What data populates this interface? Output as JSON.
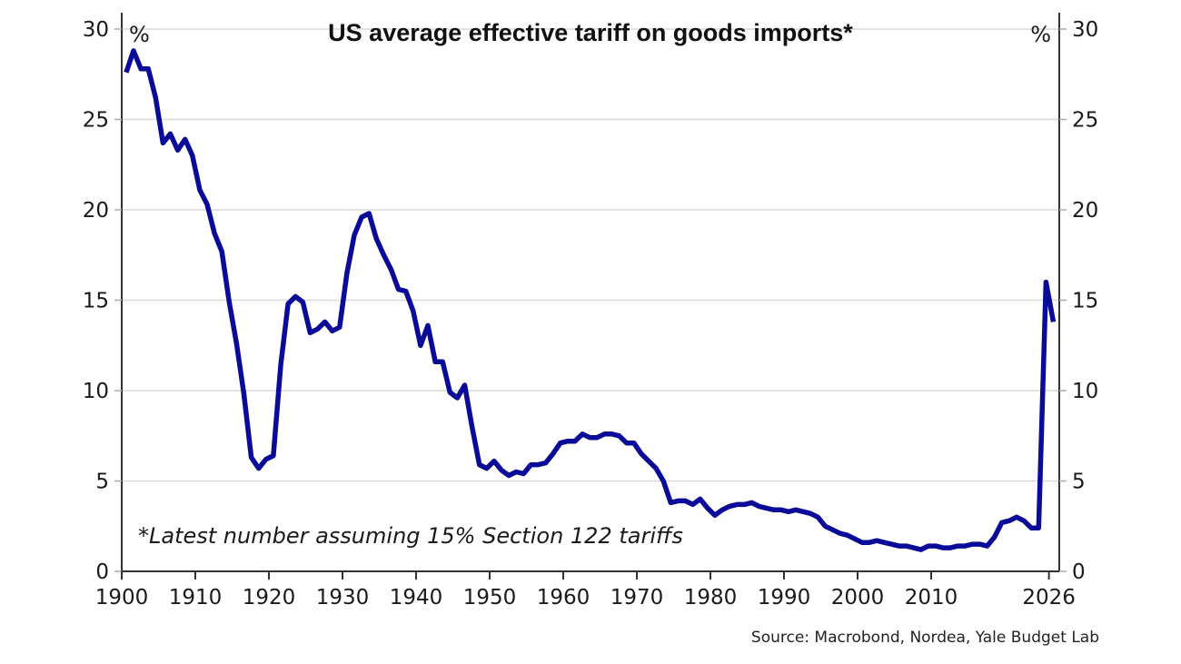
{
  "chart_data": {
    "type": "line",
    "title": "US average effective tariff on goods imports*",
    "left_unit": "%",
    "right_unit": "%",
    "xlabel": "",
    "ylabel": "%",
    "ylim": [
      0,
      30
    ],
    "xlim": [
      1900,
      2027
    ],
    "yticks": [
      0,
      5,
      10,
      15,
      20,
      25,
      30
    ],
    "ytick_labels": [
      "0",
      "5",
      "10",
      "15",
      "20",
      "25",
      "30"
    ],
    "xticks": [
      1900,
      1910,
      1920,
      1930,
      1940,
      1950,
      1960,
      1970,
      1980,
      1990,
      2000,
      2010,
      2026
    ],
    "xtick_labels": [
      "1900",
      "1910",
      "1920",
      "1930",
      "1940",
      "1950",
      "1960",
      "1970",
      "1980",
      "1990",
      "2000",
      "2010",
      "2026"
    ],
    "grid": true,
    "dual_y_axis": true,
    "annotation": "*Latest number assuming 15% Section 122 tariffs",
    "source": "Source: Macrobond, Nordea, Yale Budget Lab",
    "series": [
      {
        "name": "US average effective tariff on goods imports",
        "color": "#0b0b99",
        "x": [
          1900,
          1901,
          1902,
          1903,
          1904,
          1905,
          1906,
          1907,
          1908,
          1909,
          1910,
          1911,
          1912,
          1913,
          1914,
          1915,
          1916,
          1917,
          1918,
          1919,
          1920,
          1921,
          1922,
          1923,
          1924,
          1925,
          1926,
          1927,
          1928,
          1929,
          1930,
          1931,
          1932,
          1933,
          1934,
          1935,
          1936,
          1937,
          1938,
          1939,
          1940,
          1941,
          1942,
          1943,
          1944,
          1945,
          1946,
          1947,
          1948,
          1949,
          1950,
          1951,
          1952,
          1953,
          1954,
          1955,
          1956,
          1957,
          1958,
          1959,
          1960,
          1961,
          1962,
          1963,
          1964,
          1965,
          1966,
          1967,
          1968,
          1969,
          1970,
          1971,
          1972,
          1973,
          1974,
          1975,
          1976,
          1977,
          1978,
          1979,
          1980,
          1981,
          1982,
          1983,
          1984,
          1985,
          1986,
          1987,
          1988,
          1989,
          1990,
          1991,
          1992,
          1993,
          1994,
          1995,
          1996,
          1997,
          1998,
          1999,
          2000,
          2001,
          2002,
          2003,
          2004,
          2005,
          2006,
          2007,
          2008,
          2009,
          2010,
          2011,
          2012,
          2013,
          2014,
          2015,
          2016,
          2017,
          2018,
          2019,
          2020,
          2021,
          2022,
          2023,
          2024,
          2025,
          2026
        ],
        "values": [
          27.6,
          28.8,
          27.8,
          27.8,
          26.2,
          23.7,
          24.2,
          23.3,
          23.9,
          23.0,
          21.1,
          20.3,
          18.7,
          17.7,
          14.9,
          12.6,
          9.8,
          6.3,
          5.7,
          6.2,
          6.4,
          11.4,
          14.8,
          15.2,
          14.9,
          13.2,
          13.4,
          13.8,
          13.3,
          13.5,
          16.5,
          18.6,
          19.6,
          19.8,
          18.4,
          17.5,
          16.7,
          15.6,
          15.5,
          14.4,
          12.5,
          13.6,
          11.6,
          11.6,
          9.9,
          9.6,
          10.3,
          8.0,
          5.9,
          5.7,
          6.1,
          5.6,
          5.3,
          5.5,
          5.4,
          5.9,
          5.9,
          6.0,
          6.5,
          7.1,
          7.2,
          7.2,
          7.6,
          7.4,
          7.4,
          7.6,
          7.6,
          7.5,
          7.1,
          7.1,
          6.5,
          6.1,
          5.7,
          5.0,
          3.8,
          3.9,
          3.9,
          3.7,
          4.0,
          3.5,
          3.1,
          3.4,
          3.6,
          3.7,
          3.7,
          3.8,
          3.6,
          3.5,
          3.4,
          3.4,
          3.3,
          3.4,
          3.3,
          3.2,
          3.0,
          2.5,
          2.3,
          2.1,
          2.0,
          1.8,
          1.6,
          1.6,
          1.7,
          1.6,
          1.5,
          1.4,
          1.4,
          1.3,
          1.2,
          1.4,
          1.4,
          1.3,
          1.3,
          1.4,
          1.4,
          1.5,
          1.5,
          1.4,
          1.9,
          2.7,
          2.8,
          3.0,
          2.8,
          2.4,
          2.4,
          16.0,
          13.8
        ]
      }
    ]
  }
}
